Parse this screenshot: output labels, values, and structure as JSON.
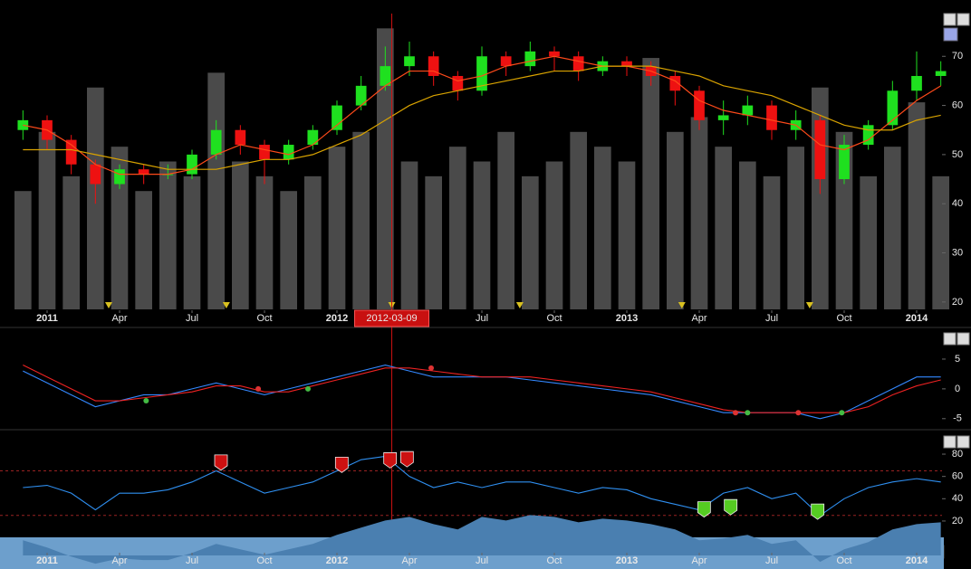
{
  "chart_data": [
    {
      "type": "candlestick",
      "x": [
        -1,
        0,
        1,
        2,
        3,
        4,
        5,
        6,
        7,
        8,
        9,
        10,
        11,
        12,
        13,
        14,
        15,
        16,
        17,
        18,
        19,
        20,
        21,
        22,
        23,
        24,
        25,
        26,
        27,
        28,
        29,
        30,
        31,
        32,
        33,
        34,
        35,
        36,
        37
      ],
      "open": [
        55,
        57,
        53,
        48,
        44,
        47,
        46,
        46,
        50,
        55,
        52,
        49,
        52,
        55,
        60,
        64,
        68,
        70,
        66,
        63,
        70,
        68,
        71,
        70,
        67,
        69,
        68,
        66,
        63,
        57,
        58,
        60,
        55,
        57,
        45,
        52,
        56,
        63,
        66
      ],
      "high": [
        59,
        58,
        54,
        49,
        48,
        48,
        48,
        51,
        57,
        56,
        53,
        53,
        56,
        61,
        66,
        72,
        73,
        71,
        67,
        72,
        71,
        73,
        72,
        71,
        70,
        70,
        69,
        67,
        64,
        61,
        62,
        61,
        59,
        58,
        54,
        57,
        65,
        71,
        69
      ],
      "low": [
        53,
        51,
        46,
        40,
        43,
        44,
        45,
        45,
        49,
        50,
        44,
        48,
        51,
        54,
        59,
        63,
        66,
        64,
        61,
        62,
        66,
        67,
        67,
        65,
        66,
        66,
        64,
        60,
        55,
        54,
        56,
        53,
        53,
        42,
        44,
        51,
        55,
        61,
        64
      ],
      "close": [
        57,
        53,
        48,
        44,
        47,
        46,
        46,
        50,
        55,
        52,
        49,
        52,
        55,
        60,
        64,
        68,
        70,
        66,
        63,
        70,
        68,
        71,
        70,
        67,
        69,
        68,
        66,
        63,
        57,
        58,
        60,
        55,
        57,
        45,
        52,
        56,
        63,
        66,
        67
      ],
      "volume": [
        40,
        60,
        45,
        75,
        55,
        40,
        50,
        45,
        80,
        50,
        45,
        40,
        45,
        55,
        60,
        95,
        50,
        45,
        55,
        50,
        60,
        45,
        50,
        60,
        55,
        50,
        85,
        60,
        65,
        55,
        50,
        45,
        55,
        75,
        60,
        45,
        55,
        70,
        45
      ],
      "vlim": [
        0,
        100
      ],
      "up_color": "#1fe01f",
      "down_color": "#ee1111",
      "volume_color": "#4a4a4a",
      "series": [
        {
          "color": "#ff4a1a",
          "values": [
            56,
            55,
            52,
            48,
            46,
            46,
            46,
            47,
            50,
            52,
            51,
            50,
            52,
            56,
            60,
            64,
            67,
            67,
            65,
            66,
            68,
            69,
            70,
            69,
            68,
            68,
            67,
            65,
            61,
            59,
            58,
            57,
            56,
            52,
            51,
            53,
            57,
            61,
            64
          ]
        },
        {
          "color": "#d9a300",
          "values": [
            51,
            51,
            51,
            50,
            49,
            48,
            47,
            47,
            47,
            48,
            49,
            49,
            50,
            52,
            54,
            57,
            60,
            62,
            63,
            64,
            65,
            66,
            67,
            67,
            68,
            68,
            68,
            67,
            66,
            64,
            63,
            62,
            60,
            58,
            56,
            55,
            55,
            57,
            58
          ]
        }
      ],
      "events": [
        2.55,
        7.42,
        14.27,
        19.57,
        26.28,
        31.57
      ],
      "cursor": {
        "x": 14.27,
        "label": "2012-03-09"
      },
      "xlim": [
        -1.95,
        37.05
      ],
      "xticks": [
        {
          "value": 0,
          "label": "2011"
        },
        {
          "value": 3,
          "label": "Apr"
        },
        {
          "value": 6,
          "label": "Jul"
        },
        {
          "value": 9,
          "label": "Oct"
        },
        {
          "value": 12,
          "label": "2012"
        },
        {
          "value": 15,
          "label": "Apr"
        },
        {
          "value": 18,
          "label": "Jul"
        },
        {
          "value": 21,
          "label": "Oct"
        },
        {
          "value": 24,
          "label": "2013"
        },
        {
          "value": 27,
          "label": "Apr"
        },
        {
          "value": 30,
          "label": "Jul"
        },
        {
          "value": 33,
          "label": "Oct"
        },
        {
          "value": 36,
          "label": "2014"
        }
      ],
      "ylim": [
        18.5,
        78.7
      ],
      "yticks": [
        20,
        30,
        40,
        50,
        60,
        70
      ]
    },
    {
      "type": "line",
      "x": [
        -1,
        0,
        1,
        2,
        3,
        4,
        5,
        6,
        7,
        8,
        9,
        10,
        11,
        12,
        13,
        14,
        15,
        16,
        17,
        18,
        19,
        20,
        21,
        22,
        23,
        24,
        25,
        26,
        27,
        28,
        29,
        30,
        31,
        32,
        33,
        34,
        35,
        36,
        37
      ],
      "series": [
        {
          "color": "#3388ff",
          "values": [
            3,
            1,
            -1,
            -3,
            -2,
            -1,
            -1,
            0,
            1,
            0,
            -1,
            0,
            1,
            2,
            3,
            4,
            3,
            2,
            2,
            2,
            2,
            1.5,
            1,
            0.5,
            0,
            -0.5,
            -1,
            -2,
            -3,
            -4,
            -4,
            -4,
            -4,
            -5,
            -4,
            -2,
            0,
            2,
            2
          ]
        },
        {
          "color": "#ee2222",
          "values": [
            4,
            2,
            0,
            -2,
            -2,
            -1.5,
            -1,
            -0.5,
            0.5,
            0.5,
            -0.5,
            -0.5,
            0.5,
            1.5,
            2.5,
            3.5,
            3.5,
            3,
            2.5,
            2,
            2,
            2,
            1.5,
            1,
            0.5,
            0,
            -0.5,
            -1.5,
            -2.5,
            -3.5,
            -4,
            -4,
            -4,
            -4,
            -4,
            -3,
            -1,
            0.5,
            1.5
          ]
        }
      ],
      "points": [
        {
          "color": "#dd3333",
          "x": [
            8.74,
            15.9,
            28.5,
            31.1
          ],
          "y": [
            0,
            3.5,
            -4,
            -4
          ]
        },
        {
          "color": "#44bb44",
          "x": [
            4.1,
            10.8,
            29,
            32.9
          ],
          "y": [
            -2,
            0,
            -4,
            -4
          ]
        }
      ],
      "xlim": [
        -1.95,
        37.05
      ],
      "ylim": [
        -6.4,
        9.4
      ],
      "yticks": [
        -5,
        0,
        5
      ]
    },
    {
      "type": "line",
      "x": [
        -1,
        0,
        1,
        2,
        3,
        4,
        5,
        6,
        7,
        8,
        9,
        10,
        11,
        12,
        13,
        14,
        15,
        16,
        17,
        18,
        19,
        20,
        21,
        22,
        23,
        24,
        25,
        26,
        27,
        28,
        29,
        30,
        31,
        32,
        33,
        34,
        35,
        36,
        37
      ],
      "series": [
        {
          "color": "#2f8ff0",
          "values": [
            50,
            52,
            45,
            30,
            45,
            45,
            48,
            55,
            65,
            55,
            45,
            50,
            55,
            65,
            75,
            78,
            60,
            50,
            55,
            50,
            55,
            55,
            50,
            45,
            50,
            48,
            40,
            35,
            30,
            45,
            50,
            40,
            45,
            25,
            40,
            50,
            55,
            58,
            55
          ]
        }
      ],
      "levels": [
        65,
        25
      ],
      "flags": [
        {
          "color": "#cc1111",
          "x": [
            7.2,
            12.2,
            14.2,
            14.9
          ],
          "y": [
            72,
            70,
            74,
            75
          ]
        },
        {
          "color": "#55cc22",
          "x": [
            27.2,
            28.3,
            31.9
          ],
          "y": [
            30,
            32,
            28
          ]
        }
      ],
      "xlim": [
        -1.95,
        37.05
      ],
      "ylim": [
        8.6,
        99.5
      ],
      "yticks": [
        20,
        40,
        60,
        80
      ]
    },
    {
      "type": "area",
      "color": "#4a7fb0",
      "xlim": [
        -1.95,
        37.05
      ],
      "xticks": [
        {
          "value": 0,
          "label": "2011"
        },
        {
          "value": 3,
          "label": "Apr"
        },
        {
          "value": 6,
          "label": "Jul"
        },
        {
          "value": 9,
          "label": "Oct"
        },
        {
          "value": 12,
          "label": "2012"
        },
        {
          "value": 15,
          "label": "Apr"
        },
        {
          "value": 18,
          "label": "Jul"
        },
        {
          "value": 21,
          "label": "Oct"
        },
        {
          "value": 24,
          "label": "2013"
        },
        {
          "value": 27,
          "label": "Apr"
        },
        {
          "value": 30,
          "label": "Jul"
        },
        {
          "value": 33,
          "label": "Oct"
        },
        {
          "value": 36,
          "label": "2014"
        }
      ]
    }
  ]
}
